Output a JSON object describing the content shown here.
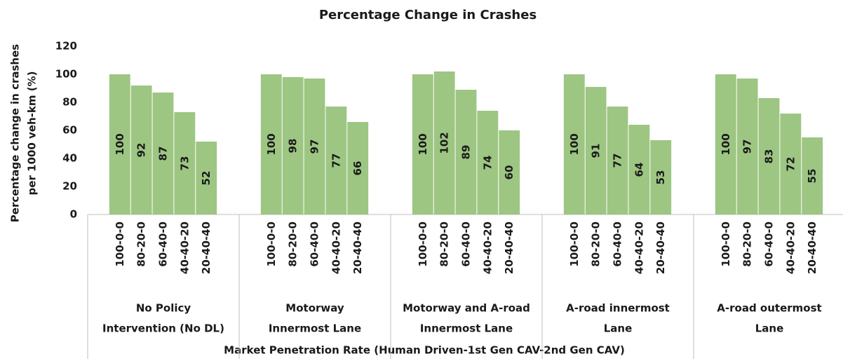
{
  "chart_data": {
    "type": "bar",
    "title": "Percentage Change in Crashes",
    "y_label": [
      "Percentage change in crashes",
      "per 1000 veh-km (%)"
    ],
    "x_label": "Market Penetration Rate (Human Driven-1st Gen CAV-2nd Gen CAV)",
    "color": "#9dc682",
    "ylim": [
      0,
      120
    ],
    "yticks": [
      0,
      20,
      40,
      60,
      80,
      100,
      120
    ],
    "groups": [
      {
        "name": [
          "No Policy",
          "Intervention (No DL)"
        ],
        "categories": [
          "100-0-0",
          "80-20-0",
          "60-40-0",
          "40-40-20",
          "20-40-40"
        ],
        "values": [
          100,
          92,
          87,
          73,
          52
        ]
      },
      {
        "name": [
          "Motorway",
          "Innermost Lane"
        ],
        "categories": [
          "100-0-0",
          "80-20-0",
          "60-40-0",
          "40-40-20",
          "20-40-40"
        ],
        "values": [
          100,
          98,
          97,
          77,
          66
        ]
      },
      {
        "name": [
          "Motorway and A-road",
          "Innermost Lane"
        ],
        "categories": [
          "100-0-0",
          "80-20-0",
          "60-40-0",
          "40-40-20",
          "20-40-40"
        ],
        "values": [
          100,
          102,
          89,
          74,
          60
        ]
      },
      {
        "name": [
          "A-road innermost",
          "Lane"
        ],
        "categories": [
          "100-0-0",
          "80-20-0",
          "60-40-0",
          "40-40-20",
          "20-40-40"
        ],
        "values": [
          100,
          91,
          77,
          64,
          53
        ]
      },
      {
        "name": [
          "A-road outermost",
          "Lane"
        ],
        "categories": [
          "100-0-0",
          "80-20-0",
          "60-40-0",
          "40-40-20",
          "20-40-40"
        ],
        "values": [
          100,
          97,
          83,
          72,
          55
        ]
      }
    ]
  }
}
